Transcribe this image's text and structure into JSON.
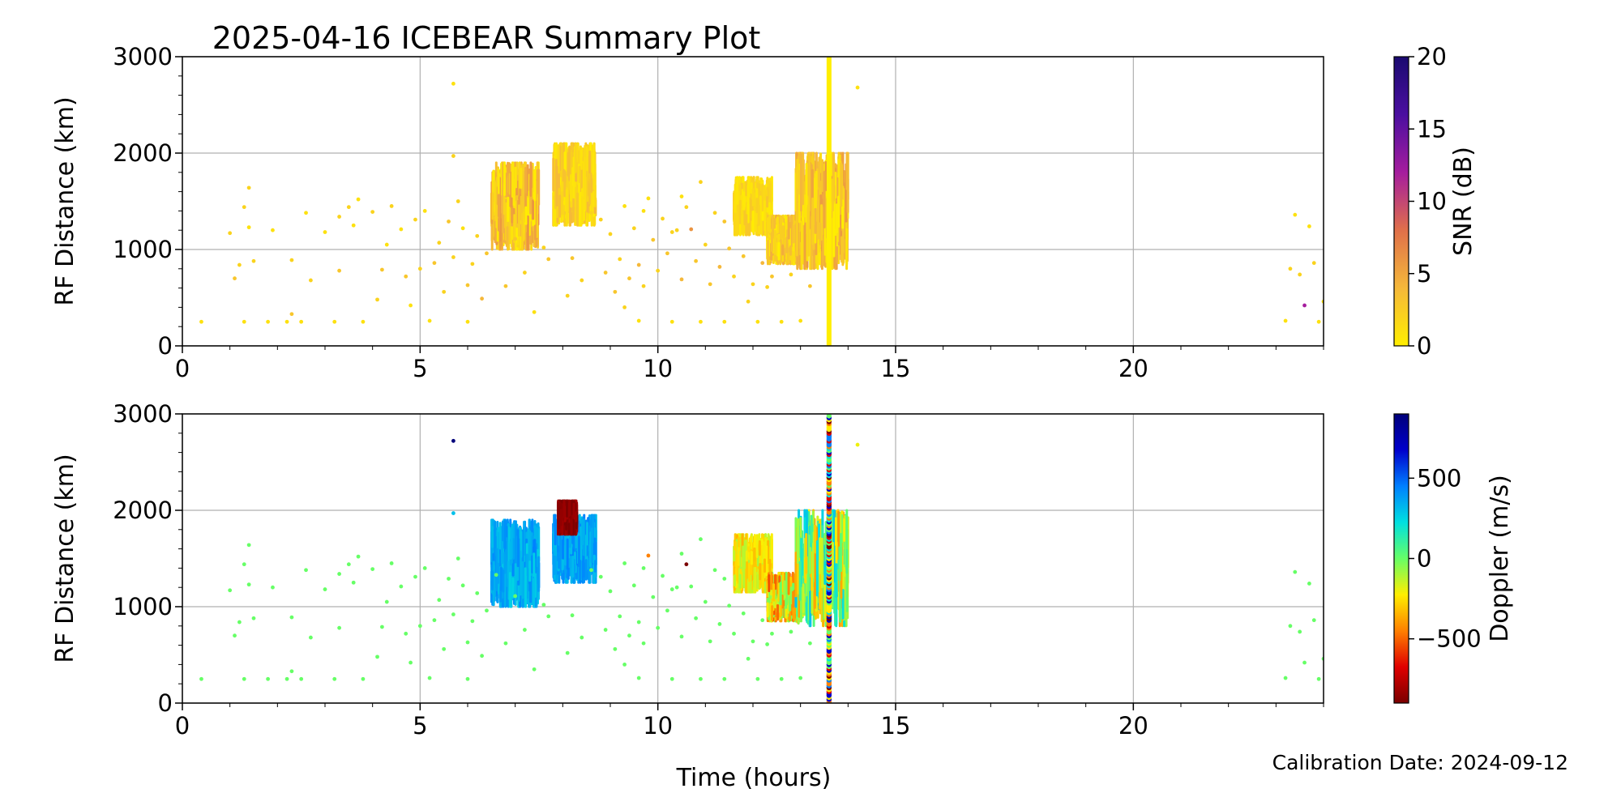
{
  "figure": {
    "title": "2025-04-16 ICEBEAR Summary Plot",
    "footer_text": "Calibration Date: 2024-09-12",
    "xlabel": "Time (hours)"
  },
  "chart_data": [
    {
      "type": "scatter",
      "panel": "top",
      "xlabel": "Time (hours)",
      "ylabel": "RF Distance (km)",
      "xlim": [
        0,
        24
      ],
      "ylim": [
        0,
        3000
      ],
      "xticks": [
        0,
        5,
        10,
        15,
        20
      ],
      "yticks": [
        0,
        1000,
        2000,
        3000
      ],
      "grid": true,
      "color_by": "SNR (dB)",
      "colorbar": {
        "label": "SNR (dB)",
        "range": [
          0,
          20
        ],
        "ticks": [
          0,
          5,
          10,
          15,
          20
        ],
        "colors": [
          "#ffee00",
          "#f5b83a",
          "#e0704a",
          "#a51d9e",
          "#4b0fa0",
          "#1a0a70"
        ]
      },
      "clusters": [
        {
          "x": [
            6.5,
            7.5
          ],
          "y": [
            1000,
            1900
          ],
          "c": [
            0,
            6
          ]
        },
        {
          "x": [
            7.8,
            8.7
          ],
          "y": [
            1250,
            2100
          ],
          "c": [
            0,
            4
          ]
        },
        {
          "x": [
            11.6,
            12.4
          ],
          "y": [
            1150,
            1750
          ],
          "c": [
            0,
            3
          ]
        },
        {
          "x": [
            12.3,
            13.0
          ],
          "y": [
            850,
            1350
          ],
          "c": [
            0,
            5
          ]
        },
        {
          "x": [
            12.9,
            14.0
          ],
          "y": [
            800,
            2000
          ],
          "c": [
            0,
            6
          ]
        }
      ],
      "vertical_streak": {
        "x": 13.6,
        "y": [
          0,
          3000
        ],
        "c": 0
      },
      "points": [
        [
          0.4,
          250,
          1
        ],
        [
          1.0,
          1170,
          2
        ],
        [
          1.1,
          700,
          3
        ],
        [
          1.2,
          840,
          2
        ],
        [
          1.3,
          250,
          1
        ],
        [
          1.3,
          1440,
          2
        ],
        [
          1.4,
          1640,
          2
        ],
        [
          1.4,
          1230,
          1
        ],
        [
          1.5,
          880,
          2
        ],
        [
          1.8,
          250,
          1
        ],
        [
          1.9,
          1200,
          1
        ],
        [
          2.2,
          250,
          1
        ],
        [
          2.3,
          330,
          3
        ],
        [
          2.3,
          890,
          2
        ],
        [
          2.5,
          250,
          1
        ],
        [
          2.6,
          1380,
          1
        ],
        [
          2.7,
          680,
          2
        ],
        [
          3.0,
          1180,
          1
        ],
        [
          3.2,
          250,
          1
        ],
        [
          3.3,
          780,
          3
        ],
        [
          3.3,
          1340,
          2
        ],
        [
          3.5,
          1440,
          2
        ],
        [
          3.6,
          1250,
          1
        ],
        [
          3.7,
          1520,
          1
        ],
        [
          3.8,
          250,
          1
        ],
        [
          4.0,
          1390,
          2
        ],
        [
          4.1,
          480,
          2
        ],
        [
          4.2,
          790,
          3
        ],
        [
          4.3,
          1050,
          1
        ],
        [
          4.4,
          1450,
          2
        ],
        [
          4.6,
          1210,
          1
        ],
        [
          4.7,
          720,
          3
        ],
        [
          4.8,
          420,
          1
        ],
        [
          4.9,
          1310,
          2
        ],
        [
          5.0,
          800,
          2
        ],
        [
          5.1,
          1400,
          1
        ],
        [
          5.2,
          260,
          1
        ],
        [
          5.3,
          860,
          3
        ],
        [
          5.4,
          1070,
          2
        ],
        [
          5.5,
          560,
          2
        ],
        [
          5.6,
          1290,
          3
        ],
        [
          5.7,
          920,
          2
        ],
        [
          5.7,
          2720,
          1
        ],
        [
          5.7,
          1970,
          2
        ],
        [
          5.8,
          1500,
          2
        ],
        [
          5.9,
          1220,
          1
        ],
        [
          6.0,
          630,
          3
        ],
        [
          6.0,
          250,
          1
        ],
        [
          6.1,
          850,
          2
        ],
        [
          6.2,
          1140,
          2
        ],
        [
          6.3,
          490,
          4
        ],
        [
          6.4,
          960,
          3
        ],
        [
          8.8,
          1310,
          2
        ],
        [
          8.9,
          760,
          3
        ],
        [
          9.0,
          1160,
          2
        ],
        [
          9.1,
          560,
          3
        ],
        [
          9.2,
          900,
          2
        ],
        [
          9.3,
          1450,
          1
        ],
        [
          9.4,
          700,
          3
        ],
        [
          9.5,
          1220,
          2
        ],
        [
          9.6,
          840,
          4
        ],
        [
          9.7,
          620,
          2
        ],
        [
          9.8,
          1530,
          1
        ],
        [
          9.9,
          1100,
          3
        ],
        [
          10.0,
          780,
          2
        ],
        [
          10.1,
          1320,
          2
        ],
        [
          10.2,
          960,
          3
        ],
        [
          10.3,
          250,
          1
        ],
        [
          10.4,
          1200,
          2
        ],
        [
          10.5,
          690,
          4
        ],
        [
          10.6,
          1440,
          2
        ],
        [
          10.7,
          1210,
          6
        ],
        [
          10.8,
          880,
          3
        ],
        [
          10.9,
          250,
          1
        ],
        [
          11.0,
          1050,
          2
        ],
        [
          11.1,
          640,
          3
        ],
        [
          11.2,
          1380,
          2
        ],
        [
          11.3,
          820,
          4
        ],
        [
          11.4,
          250,
          1
        ],
        [
          11.5,
          1010,
          3
        ],
        [
          11.6,
          720,
          2
        ],
        [
          11.8,
          930,
          3
        ],
        [
          12.0,
          640,
          2
        ],
        [
          12.1,
          250,
          1
        ],
        [
          12.2,
          860,
          4
        ],
        [
          12.4,
          720,
          3
        ],
        [
          12.6,
          250,
          1
        ],
        [
          12.8,
          740,
          2
        ],
        [
          13.0,
          260,
          1
        ],
        [
          13.2,
          620,
          3
        ],
        [
          14.2,
          2680,
          1
        ],
        [
          23.2,
          260,
          1
        ],
        [
          23.3,
          800,
          2
        ],
        [
          23.4,
          1360,
          1
        ],
        [
          23.5,
          740,
          2
        ],
        [
          23.6,
          420,
          12
        ],
        [
          23.7,
          1240,
          1
        ],
        [
          23.8,
          860,
          2
        ],
        [
          23.9,
          250,
          1
        ],
        [
          24.0,
          460,
          1
        ],
        [
          6.6,
          1330,
          2
        ],
        [
          7.0,
          1110,
          3
        ],
        [
          7.6,
          1020,
          2
        ],
        [
          8.2,
          910,
          3
        ],
        [
          8.6,
          1380,
          2
        ],
        [
          9.7,
          1400,
          1
        ],
        [
          10.3,
          1180,
          2
        ],
        [
          10.5,
          1550,
          1
        ],
        [
          10.9,
          1700,
          2
        ],
        [
          11.4,
          1290,
          3
        ],
        [
          6.8,
          620,
          3
        ],
        [
          7.2,
          760,
          2
        ],
        [
          7.4,
          350,
          1
        ],
        [
          7.7,
          900,
          3
        ],
        [
          8.1,
          520,
          2
        ],
        [
          8.4,
          680,
          2
        ],
        [
          9.3,
          400,
          2
        ],
        [
          9.6,
          260,
          1
        ],
        [
          11.9,
          460,
          2
        ],
        [
          12.3,
          610,
          2
        ]
      ]
    },
    {
      "type": "scatter",
      "panel": "bottom",
      "xlabel": "Time (hours)",
      "ylabel": "RF Distance (km)",
      "xlim": [
        0,
        24
      ],
      "ylim": [
        0,
        3000
      ],
      "xticks": [
        0,
        5,
        10,
        15,
        20
      ],
      "yticks": [
        0,
        1000,
        2000,
        3000
      ],
      "grid": true,
      "color_by": "Doppler (m/s)",
      "colorbar": {
        "label": "Doppler (m/s)",
        "range": [
          -900,
          900
        ],
        "ticks": [
          -500,
          0,
          500
        ],
        "colors": [
          "#7a0000",
          "#e00000",
          "#ff8000",
          "#ffee00",
          "#66ff66",
          "#00e0e0",
          "#0080ff",
          "#0000cc",
          "#00007a"
        ]
      },
      "clusters": [
        {
          "x": [
            6.5,
            7.5
          ],
          "y": [
            1000,
            1900
          ],
          "c": [
            250,
            450
          ]
        },
        {
          "x": [
            7.8,
            8.7
          ],
          "y": [
            1250,
            1950
          ],
          "c": [
            300,
            450
          ]
        },
        {
          "x": [
            7.9,
            8.3
          ],
          "y": [
            1750,
            2100
          ],
          "c": [
            -900,
            -800
          ]
        },
        {
          "x": [
            11.6,
            12.4
          ],
          "y": [
            1150,
            1750
          ],
          "c": [
            -350,
            -100
          ]
        },
        {
          "x": [
            12.3,
            13.0
          ],
          "y": [
            850,
            1350
          ],
          "c": [
            -550,
            0
          ]
        },
        {
          "x": [
            12.9,
            14.0
          ],
          "y": [
            800,
            2000
          ],
          "c": [
            -400,
            300
          ]
        }
      ],
      "vertical_streak": {
        "x": 13.6,
        "y": [
          0,
          3000
        ],
        "c": "mixed"
      },
      "points": [
        [
          0.4,
          250,
          0
        ],
        [
          1.0,
          1170,
          0
        ],
        [
          1.1,
          700,
          0
        ],
        [
          1.2,
          840,
          0
        ],
        [
          1.3,
          250,
          0
        ],
        [
          1.3,
          1440,
          0
        ],
        [
          1.4,
          1640,
          0
        ],
        [
          1.4,
          1230,
          0
        ],
        [
          1.5,
          880,
          0
        ],
        [
          1.8,
          250,
          0
        ],
        [
          1.9,
          1200,
          0
        ],
        [
          2.2,
          250,
          0
        ],
        [
          2.3,
          330,
          0
        ],
        [
          2.3,
          890,
          0
        ],
        [
          2.5,
          250,
          0
        ],
        [
          2.6,
          1380,
          0
        ],
        [
          2.7,
          680,
          0
        ],
        [
          3.0,
          1180,
          0
        ],
        [
          3.2,
          250,
          0
        ],
        [
          3.3,
          780,
          0
        ],
        [
          3.3,
          1340,
          0
        ],
        [
          3.5,
          1440,
          0
        ],
        [
          3.6,
          1250,
          0
        ],
        [
          3.7,
          1520,
          0
        ],
        [
          3.8,
          250,
          0
        ],
        [
          4.0,
          1390,
          0
        ],
        [
          4.1,
          480,
          0
        ],
        [
          4.2,
          790,
          0
        ],
        [
          4.3,
          1050,
          0
        ],
        [
          4.4,
          1450,
          0
        ],
        [
          4.6,
          1210,
          0
        ],
        [
          4.7,
          720,
          0
        ],
        [
          4.8,
          420,
          0
        ],
        [
          4.9,
          1310,
          0
        ],
        [
          5.0,
          800,
          0
        ],
        [
          5.1,
          1400,
          0
        ],
        [
          5.2,
          260,
          0
        ],
        [
          5.3,
          860,
          0
        ],
        [
          5.4,
          1070,
          0
        ],
        [
          5.5,
          560,
          0
        ],
        [
          5.6,
          1290,
          0
        ],
        [
          5.7,
          920,
          0
        ],
        [
          5.7,
          2720,
          900
        ],
        [
          5.7,
          1970,
          300
        ],
        [
          5.8,
          1500,
          0
        ],
        [
          5.9,
          1220,
          0
        ],
        [
          6.0,
          630,
          0
        ],
        [
          6.0,
          250,
          0
        ],
        [
          6.1,
          850,
          0
        ],
        [
          6.2,
          1140,
          0
        ],
        [
          6.3,
          490,
          0
        ],
        [
          6.4,
          960,
          0
        ],
        [
          8.8,
          1310,
          0
        ],
        [
          8.9,
          760,
          0
        ],
        [
          9.0,
          1160,
          0
        ],
        [
          9.1,
          560,
          0
        ],
        [
          9.2,
          900,
          0
        ],
        [
          9.3,
          1450,
          0
        ],
        [
          9.4,
          700,
          0
        ],
        [
          9.5,
          1220,
          0
        ],
        [
          9.6,
          840,
          0
        ],
        [
          9.7,
          620,
          0
        ],
        [
          9.8,
          1530,
          -450
        ],
        [
          9.9,
          1100,
          0
        ],
        [
          10.0,
          780,
          0
        ],
        [
          10.1,
          1320,
          0
        ],
        [
          10.2,
          960,
          0
        ],
        [
          10.3,
          250,
          0
        ],
        [
          10.4,
          1200,
          0
        ],
        [
          10.5,
          690,
          0
        ],
        [
          10.6,
          1440,
          -900
        ],
        [
          10.7,
          1210,
          0
        ],
        [
          10.8,
          880,
          0
        ],
        [
          10.9,
          250,
          0
        ],
        [
          11.0,
          1050,
          0
        ],
        [
          11.1,
          640,
          0
        ],
        [
          11.2,
          1380,
          0
        ],
        [
          11.3,
          820,
          0
        ],
        [
          11.4,
          250,
          0
        ],
        [
          11.5,
          1010,
          0
        ],
        [
          11.6,
          720,
          0
        ],
        [
          11.8,
          930,
          0
        ],
        [
          12.0,
          640,
          0
        ],
        [
          12.1,
          250,
          0
        ],
        [
          12.2,
          860,
          0
        ],
        [
          12.4,
          720,
          0
        ],
        [
          12.6,
          250,
          0
        ],
        [
          12.8,
          740,
          0
        ],
        [
          13.0,
          260,
          0
        ],
        [
          13.2,
          620,
          0
        ],
        [
          14.2,
          2680,
          -200
        ],
        [
          23.2,
          260,
          0
        ],
        [
          23.3,
          800,
          0
        ],
        [
          23.4,
          1360,
          0
        ],
        [
          23.5,
          740,
          0
        ],
        [
          23.6,
          420,
          0
        ],
        [
          23.7,
          1240,
          0
        ],
        [
          23.8,
          860,
          0
        ],
        [
          23.9,
          250,
          0
        ],
        [
          24.0,
          460,
          0
        ],
        [
          6.6,
          1330,
          0
        ],
        [
          7.0,
          1110,
          0
        ],
        [
          7.6,
          1020,
          0
        ],
        [
          8.2,
          910,
          0
        ],
        [
          8.6,
          1380,
          0
        ],
        [
          9.7,
          1400,
          0
        ],
        [
          10.3,
          1180,
          0
        ],
        [
          10.5,
          1550,
          0
        ],
        [
          10.9,
          1700,
          0
        ],
        [
          11.4,
          1290,
          0
        ],
        [
          6.8,
          620,
          0
        ],
        [
          7.2,
          760,
          0
        ],
        [
          7.4,
          350,
          0
        ],
        [
          7.7,
          900,
          0
        ],
        [
          8.1,
          520,
          0
        ],
        [
          8.4,
          680,
          0
        ],
        [
          9.3,
          400,
          0
        ],
        [
          9.6,
          260,
          0
        ],
        [
          11.9,
          460,
          0
        ],
        [
          12.3,
          610,
          0
        ]
      ]
    }
  ]
}
